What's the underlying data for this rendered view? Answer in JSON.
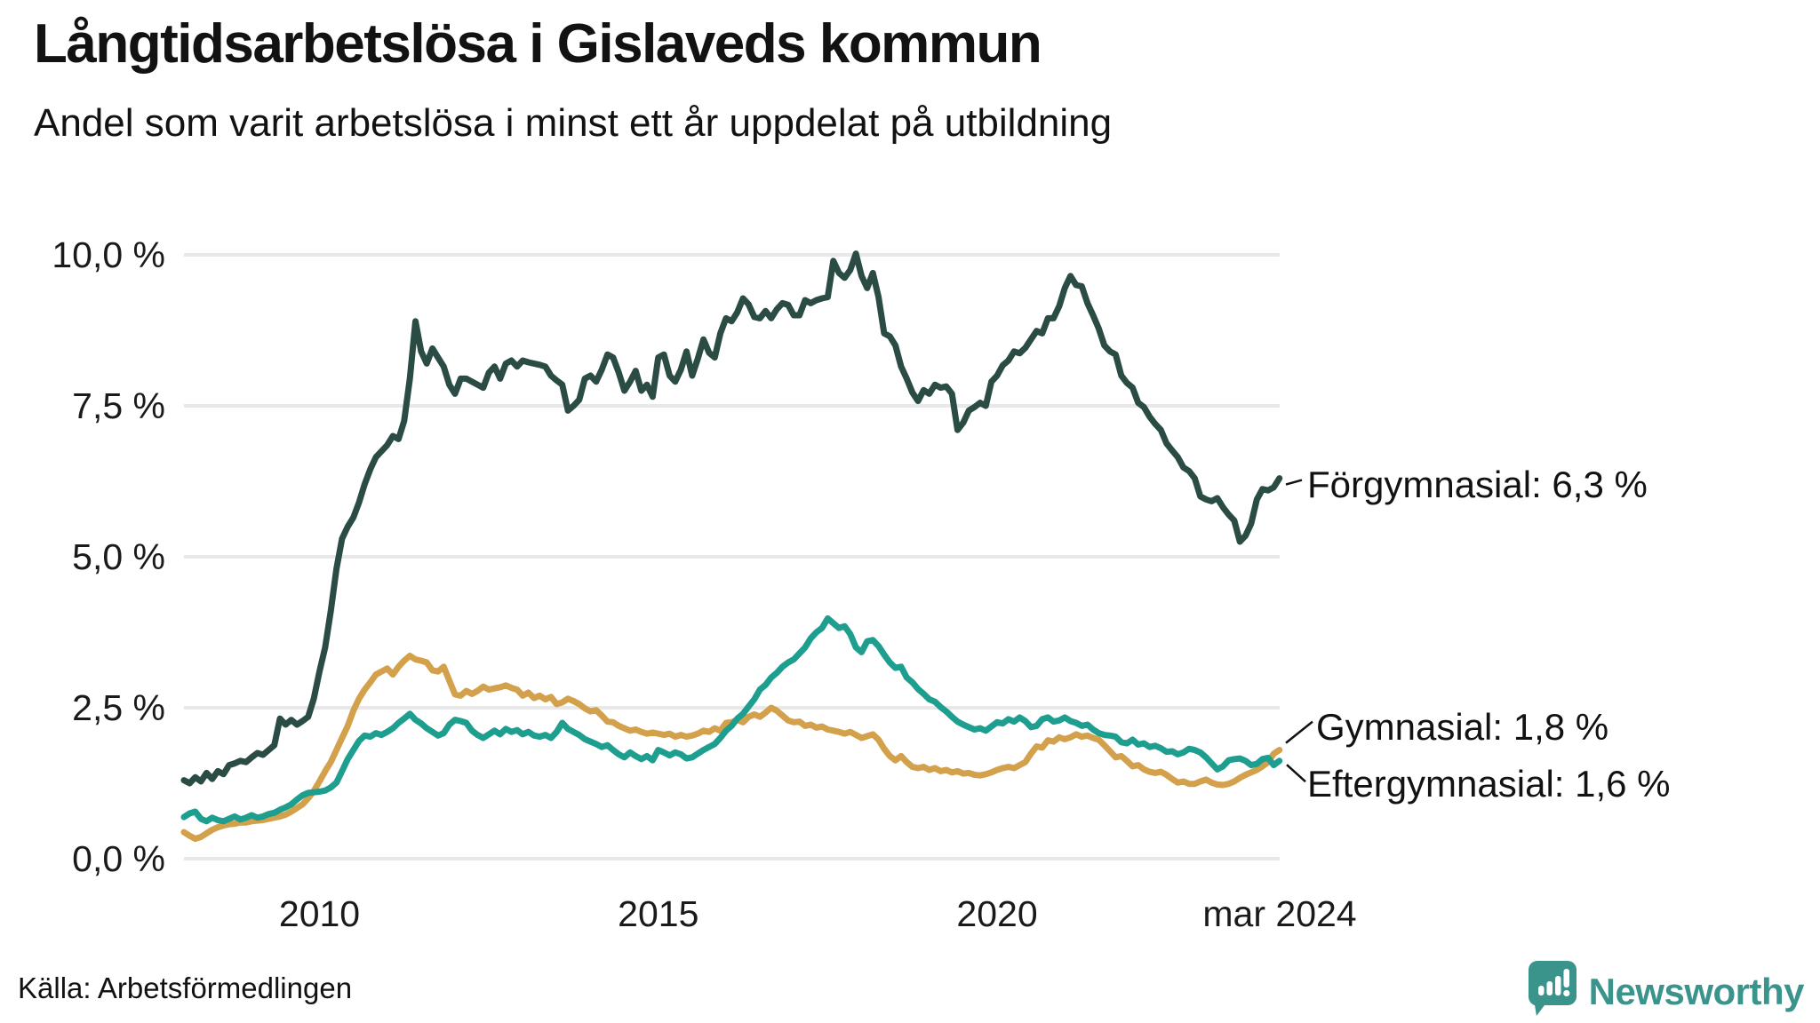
{
  "header": {
    "title": "Långtidsarbetslösa i Gislaveds kommun",
    "subtitle": "Andel som varit arbetslösa i minst ett år uppdelat på utbildning"
  },
  "footer": {
    "source": "Källa: Arbetsförmedlingen",
    "brand": "Newsworthy"
  },
  "colors": {
    "grid": "#e8e8ea",
    "text": "#121212",
    "leader": "#121212",
    "brand_teal": "#3b948c",
    "forgymnasial": "#2b4c44",
    "gymnasial": "#d3a04b",
    "eftergymnasial": "#1d9e8f"
  },
  "chart_data": {
    "type": "line",
    "title": "Långtidsarbetslösa i Gislaveds kommun",
    "subtitle": "Andel som varit arbetslösa i minst ett år uppdelat på utbildning",
    "grid": true,
    "legend_position": "right-end-labels",
    "x_axis": {
      "range": [
        2008.0,
        2024.17
      ],
      "ticks": [
        "2010",
        "2015",
        "2020",
        "mar 2024"
      ],
      "tick_times": [
        2010.0,
        2015.0,
        2020.0,
        2024.17
      ]
    },
    "y_axis": {
      "range": [
        0,
        10
      ],
      "unit": "%",
      "ticks": [
        "10,0 %",
        "7,5 %",
        "5,0 %",
        "2,5 %",
        "0,0 %"
      ],
      "tick_values": [
        10,
        7.5,
        5,
        2.5,
        0
      ]
    },
    "series": [
      {
        "name": "Förgymnasial",
        "label": "Förgymnasial: 6,3 %",
        "end_value": 6.3,
        "color": "#2b4c44",
        "start": 2008.0,
        "step": 0.08333,
        "values": [
          1.3,
          1.25,
          1.35,
          1.28,
          1.42,
          1.32,
          1.45,
          1.4,
          1.55,
          1.58,
          1.62,
          1.6,
          1.68,
          1.75,
          1.72,
          1.8,
          1.88,
          2.32,
          2.22,
          2.3,
          2.22,
          2.28,
          2.35,
          2.65,
          3.1,
          3.5,
          4.1,
          4.8,
          5.3,
          5.5,
          5.65,
          5.9,
          6.2,
          6.45,
          6.65,
          6.75,
          6.85,
          7.0,
          6.95,
          7.25,
          7.95,
          8.9,
          8.4,
          8.2,
          8.45,
          8.3,
          8.15,
          7.85,
          7.7,
          7.95,
          7.95,
          7.9,
          7.85,
          7.8,
          8.05,
          8.15,
          7.95,
          8.2,
          8.25,
          8.15,
          8.25,
          8.22,
          8.2,
          8.18,
          8.15,
          8.0,
          7.92,
          7.85,
          7.42,
          7.5,
          7.6,
          7.95,
          8.0,
          7.9,
          8.1,
          8.35,
          8.3,
          8.05,
          7.75,
          7.9,
          8.08,
          7.75,
          7.85,
          7.65,
          8.3,
          8.35,
          8.0,
          7.9,
          8.1,
          8.4,
          8.0,
          8.28,
          8.6,
          8.38,
          8.3,
          8.7,
          8.95,
          8.9,
          9.05,
          9.28,
          9.18,
          8.97,
          8.95,
          9.07,
          8.95,
          9.1,
          9.2,
          9.17,
          9.0,
          9.0,
          9.25,
          9.2,
          9.25,
          9.28,
          9.3,
          9.9,
          9.7,
          9.62,
          9.75,
          10.02,
          9.65,
          9.45,
          9.7,
          9.3,
          8.7,
          8.65,
          8.5,
          8.15,
          7.95,
          7.72,
          7.58,
          7.76,
          7.7,
          7.85,
          7.8,
          7.82,
          7.7,
          7.1,
          7.22,
          7.42,
          7.48,
          7.55,
          7.5,
          7.9,
          8.0,
          8.17,
          8.25,
          8.4,
          8.37,
          8.46,
          8.6,
          8.74,
          8.7,
          8.95,
          8.95,
          9.15,
          9.45,
          9.65,
          9.5,
          9.48,
          9.2,
          9.0,
          8.78,
          8.5,
          8.4,
          8.35,
          8.0,
          7.88,
          7.8,
          7.55,
          7.48,
          7.32,
          7.2,
          7.1,
          6.88,
          6.76,
          6.65,
          6.48,
          6.42,
          6.3,
          6.0,
          5.95,
          5.92,
          5.97,
          5.82,
          5.7,
          5.6,
          5.25,
          5.35,
          5.55,
          5.95,
          6.12,
          6.1,
          6.15,
          6.3
        ]
      },
      {
        "name": "Gymnasial",
        "label": "Gymnasial: 1,8 %",
        "end_value": 1.8,
        "color": "#d3a04b",
        "start": 2008.0,
        "step": 0.08333,
        "values": [
          0.44,
          0.38,
          0.33,
          0.36,
          0.42,
          0.48,
          0.52,
          0.55,
          0.57,
          0.58,
          0.6,
          0.6,
          0.62,
          0.63,
          0.64,
          0.66,
          0.68,
          0.7,
          0.73,
          0.78,
          0.84,
          0.9,
          1.0,
          1.12,
          1.28,
          1.45,
          1.6,
          1.8,
          2.0,
          2.2,
          2.45,
          2.65,
          2.8,
          2.92,
          3.05,
          3.1,
          3.15,
          3.05,
          3.18,
          3.28,
          3.36,
          3.3,
          3.28,
          3.25,
          3.12,
          3.1,
          3.18,
          2.95,
          2.72,
          2.7,
          2.78,
          2.73,
          2.78,
          2.85,
          2.8,
          2.82,
          2.84,
          2.87,
          2.83,
          2.8,
          2.7,
          2.75,
          2.66,
          2.7,
          2.64,
          2.68,
          2.56,
          2.59,
          2.65,
          2.61,
          2.56,
          2.49,
          2.44,
          2.46,
          2.37,
          2.27,
          2.26,
          2.2,
          2.16,
          2.12,
          2.14,
          2.1,
          2.07,
          2.09,
          2.07,
          2.05,
          2.07,
          2.02,
          2.05,
          2.02,
          2.04,
          2.07,
          2.12,
          2.1,
          2.16,
          2.12,
          2.25,
          2.26,
          2.3,
          2.26,
          2.35,
          2.39,
          2.35,
          2.42,
          2.5,
          2.45,
          2.37,
          2.29,
          2.26,
          2.27,
          2.2,
          2.22,
          2.17,
          2.19,
          2.14,
          2.12,
          2.1,
          2.07,
          2.1,
          2.05,
          2.0,
          2.03,
          2.06,
          1.97,
          1.82,
          1.7,
          1.63,
          1.7,
          1.6,
          1.52,
          1.5,
          1.52,
          1.47,
          1.5,
          1.45,
          1.47,
          1.43,
          1.45,
          1.41,
          1.42,
          1.39,
          1.38,
          1.4,
          1.43,
          1.47,
          1.5,
          1.52,
          1.5,
          1.55,
          1.6,
          1.74,
          1.86,
          1.84,
          1.96,
          1.94,
          2.01,
          1.98,
          2.01,
          2.06,
          2.02,
          2.04,
          2.0,
          1.97,
          1.88,
          1.78,
          1.68,
          1.7,
          1.62,
          1.53,
          1.55,
          1.48,
          1.44,
          1.42,
          1.44,
          1.39,
          1.32,
          1.26,
          1.28,
          1.24,
          1.24,
          1.28,
          1.31,
          1.26,
          1.23,
          1.22,
          1.24,
          1.28,
          1.34,
          1.39,
          1.43,
          1.47,
          1.53,
          1.6,
          1.74,
          1.8
        ]
      },
      {
        "name": "Eftergymnasial",
        "label": "Eftergymnasial: 1,6 %",
        "end_value": 1.6,
        "color": "#1d9e8f",
        "start": 2008.0,
        "step": 0.08333,
        "values": [
          0.69,
          0.75,
          0.78,
          0.66,
          0.62,
          0.68,
          0.64,
          0.62,
          0.66,
          0.7,
          0.65,
          0.68,
          0.72,
          0.68,
          0.7,
          0.74,
          0.76,
          0.81,
          0.85,
          0.9,
          0.98,
          1.05,
          1.09,
          1.1,
          1.11,
          1.13,
          1.18,
          1.26,
          1.45,
          1.65,
          1.8,
          1.95,
          2.04,
          2.02,
          2.08,
          2.05,
          2.1,
          2.16,
          2.25,
          2.32,
          2.4,
          2.3,
          2.24,
          2.16,
          2.1,
          2.04,
          2.08,
          2.22,
          2.3,
          2.28,
          2.25,
          2.12,
          2.05,
          2.0,
          2.06,
          2.12,
          2.06,
          2.15,
          2.1,
          2.13,
          2.06,
          2.1,
          2.04,
          2.02,
          2.05,
          2.0,
          2.1,
          2.25,
          2.15,
          2.1,
          2.05,
          1.98,
          1.94,
          1.9,
          1.85,
          1.88,
          1.8,
          1.73,
          1.68,
          1.76,
          1.7,
          1.65,
          1.7,
          1.63,
          1.8,
          1.76,
          1.71,
          1.76,
          1.73,
          1.66,
          1.68,
          1.74,
          1.8,
          1.85,
          1.9,
          2.0,
          2.12,
          2.2,
          2.32,
          2.4,
          2.52,
          2.64,
          2.8,
          2.88,
          3.0,
          3.08,
          3.18,
          3.25,
          3.3,
          3.4,
          3.5,
          3.65,
          3.75,
          3.82,
          3.98,
          3.9,
          3.82,
          3.85,
          3.72,
          3.5,
          3.42,
          3.6,
          3.62,
          3.52,
          3.38,
          3.25,
          3.16,
          3.18,
          3.0,
          2.92,
          2.81,
          2.73,
          2.64,
          2.6,
          2.51,
          2.44,
          2.35,
          2.27,
          2.22,
          2.18,
          2.14,
          2.16,
          2.12,
          2.19,
          2.26,
          2.24,
          2.31,
          2.27,
          2.34,
          2.28,
          2.18,
          2.2,
          2.31,
          2.34,
          2.27,
          2.29,
          2.34,
          2.28,
          2.25,
          2.2,
          2.22,
          2.14,
          2.08,
          2.05,
          2.04,
          2.02,
          1.93,
          1.91,
          1.97,
          1.89,
          1.91,
          1.85,
          1.87,
          1.83,
          1.77,
          1.78,
          1.73,
          1.76,
          1.82,
          1.8,
          1.76,
          1.68,
          1.58,
          1.48,
          1.53,
          1.63,
          1.65,
          1.66,
          1.62,
          1.55,
          1.57,
          1.65,
          1.67,
          1.55,
          1.62
        ]
      }
    ]
  }
}
